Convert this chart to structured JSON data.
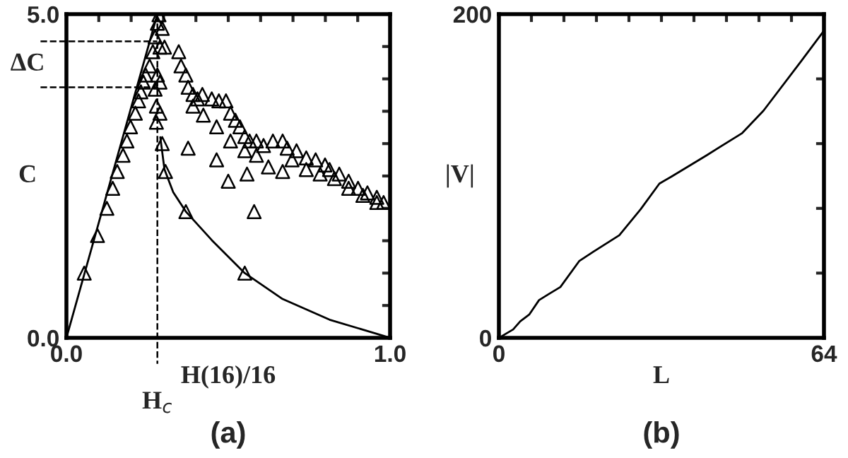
{
  "chart_data": [
    {
      "type": "scatter",
      "title": "(a)",
      "xlabel": "H(16)/16",
      "ylabel": "C",
      "xlim": [
        0,
        1
      ],
      "ylim": [
        0,
        5
      ],
      "xticks": [
        {
          "value": 0,
          "label": "0.0"
        },
        {
          "value": 0.1,
          "label": null
        },
        {
          "value": 0.2,
          "label": null
        },
        {
          "value": 0.3,
          "label": null
        },
        {
          "value": 0.4,
          "label": null
        },
        {
          "value": 0.5,
          "label": null
        },
        {
          "value": 0.6,
          "label": null
        },
        {
          "value": 0.7,
          "label": null
        },
        {
          "value": 0.8,
          "label": null
        },
        {
          "value": 0.9,
          "label": null
        },
        {
          "value": 1,
          "label": "1.0"
        }
      ],
      "yticks": [
        {
          "value": 0,
          "label": "0.0"
        },
        {
          "value": 0.5,
          "label": null
        },
        {
          "value": 1,
          "label": null
        },
        {
          "value": 1.5,
          "label": null
        },
        {
          "value": 2,
          "label": null
        },
        {
          "value": 2.5,
          "label": null
        },
        {
          "value": 3,
          "label": null
        },
        {
          "value": 3.5,
          "label": null
        },
        {
          "value": 4,
          "label": null
        },
        {
          "value": 4.5,
          "label": null
        },
        {
          "value": 5,
          "label": "5.0"
        }
      ],
      "annotations": [
        "ΔC"
      ],
      "ref_lines": [
        {
          "axis": "x",
          "value": 0.281,
          "label": "H$_{c}$",
          "line_style": "dashed",
          "color": "#000000"
        },
        {
          "axis": "y",
          "value": 4.58,
          "label": null,
          "line_style": "dashed",
          "color": "#000000"
        },
        {
          "axis": "y",
          "value": 3.87,
          "label": null,
          "line_style": "dashed",
          "color": "#000000"
        }
      ],
      "series": [
        {
          "type": "scatter",
          "marker": "triangle",
          "color": "#000000",
          "x": [
            0.055,
            0.096,
            0.125,
            0.143,
            0.157,
            0.175,
            0.187,
            0.198,
            0.213,
            0.223,
            0.23,
            0.238,
            0.245,
            0.257,
            0.267,
            0.274,
            0.281,
            0.286,
            0.281,
            0.289,
            0.274,
            0.289,
            0.296,
            0.303,
            0.278,
            0.289,
            0.278,
            0.296,
            0.306,
            0.347,
            0.354,
            0.369,
            0.376,
            0.391,
            0.405,
            0.42,
            0.449,
            0.471,
            0.493,
            0.507,
            0.522,
            0.536,
            0.551,
            0.566,
            0.587,
            0.609,
            0.638,
            0.668,
            0.682,
            0.711,
            0.741,
            0.77,
            0.799,
            0.813,
            0.843,
            0.872,
            0.901,
            0.93,
            0.959,
            0.98,
            0.391,
            0.423,
            0.464,
            0.507,
            0.551,
            0.587,
            0.624,
            0.668,
            0.697,
            0.741,
            0.784,
            0.828,
            0.872,
            0.916,
            0.959,
            0.376,
            0.464,
            0.5,
            0.558,
            0.58,
            0.369,
            0.551
          ],
          "values": [
            1.0,
            1.58,
            2.0,
            2.31,
            2.57,
            2.82,
            3.04,
            3.26,
            3.47,
            3.66,
            3.8,
            3.95,
            4.06,
            4.2,
            4.42,
            4.65,
            4.86,
            4.99,
            4.06,
            3.95,
            3.84,
            4.49,
            4.78,
            4.49,
            3.58,
            3.47,
            3.33,
            3.0,
            2.57,
            4.42,
            4.2,
            4.06,
            3.87,
            3.76,
            3.69,
            3.76,
            3.69,
            3.66,
            3.66,
            3.47,
            3.36,
            3.26,
            3.11,
            3.04,
            3.04,
            2.97,
            3.04,
            3.04,
            2.93,
            2.89,
            2.78,
            2.75,
            2.67,
            2.6,
            2.53,
            2.42,
            2.31,
            2.24,
            2.17,
            2.09,
            3.58,
            3.44,
            3.26,
            3.04,
            2.89,
            2.82,
            2.64,
            2.57,
            2.75,
            2.6,
            2.53,
            2.46,
            2.31,
            2.2,
            2.09,
            2.93,
            2.75,
            2.42,
            2.53,
            1.95,
            1.95,
            1.0
          ]
        },
        {
          "type": "line",
          "marker": "none",
          "color": "#000000",
          "x": [
            0,
            0.281
          ],
          "values": [
            0,
            5.0
          ]
        },
        {
          "type": "line",
          "marker": "none",
          "color": "#000000",
          "x": [
            0.29,
            0.303,
            0.33,
            0.369,
            0.449,
            0.551,
            0.668,
            0.813,
            1.0
          ],
          "values": [
            3.1,
            2.6,
            2.25,
            1.95,
            1.51,
            1.0,
            0.6,
            0.28,
            0
          ]
        }
      ]
    },
    {
      "type": "line",
      "title": "(b)",
      "xlabel": "L",
      "ylabel": "|V|",
      "xlim": [
        0,
        64
      ],
      "ylim": [
        0,
        200
      ],
      "xticks": [
        0,
        {
          "value": 6.4,
          "label": null
        },
        {
          "value": 12.8,
          "label": null
        },
        {
          "value": 19.2,
          "label": null
        },
        {
          "value": 25.6,
          "label": null
        },
        {
          "value": 32,
          "label": null
        },
        {
          "value": 38.4,
          "label": null
        },
        {
          "value": 44.8,
          "label": null
        },
        {
          "value": 51.2,
          "label": null
        },
        {
          "value": 57.6,
          "label": null
        },
        64
      ],
      "yticks": [
        0,
        {
          "value": 40,
          "label": null
        },
        {
          "value": 80,
          "label": null
        },
        {
          "value": 120,
          "label": null
        },
        {
          "value": 160,
          "label": null
        },
        200
      ],
      "series": [
        {
          "color": "#000000",
          "x": [
            0,
            2.8,
            4.2,
            6.0,
            7.9,
            9.8,
            12.1,
            15.8,
            18.6,
            23.7,
            27.9,
            31.6,
            34.0,
            40.9,
            47.9,
            52.1,
            59.5,
            64
          ],
          "values": [
            0,
            5.2,
            10.2,
            14.5,
            23.3,
            27.0,
            31.4,
            47.4,
            53.2,
            63.4,
            79.4,
            95.3,
            99.7,
            112.8,
            126.5,
            140.4,
            170.9,
            189.8
          ]
        }
      ]
    }
  ]
}
